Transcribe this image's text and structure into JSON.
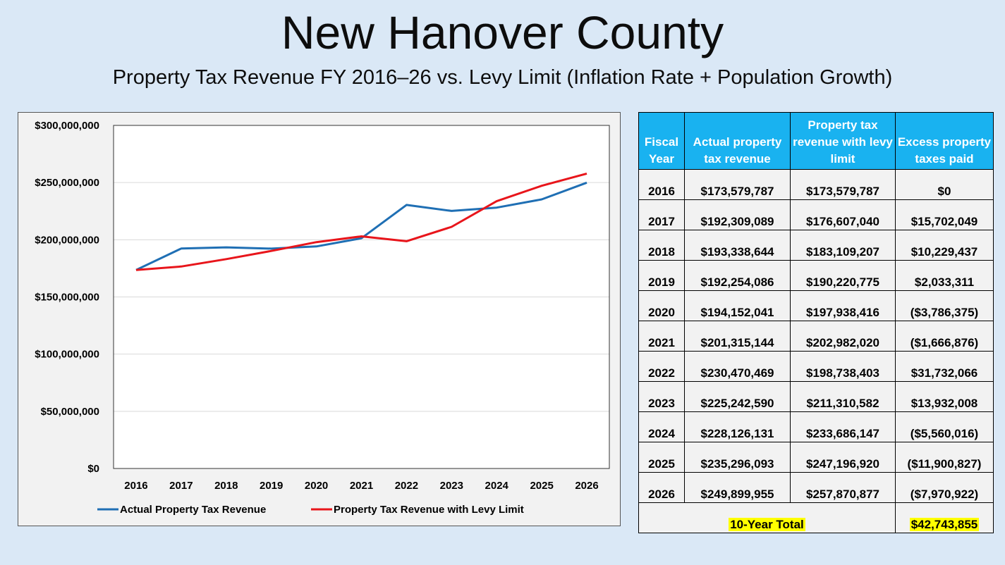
{
  "header": {
    "title": "New Hanover County",
    "subtitle": "Property Tax Revenue FY 2016–26 vs. Levy Limit (Inflation Rate + Population Growth)"
  },
  "chart_data": {
    "type": "line",
    "title": "",
    "xlabel": "",
    "ylabel": "",
    "categories": [
      "2016",
      "2017",
      "2018",
      "2019",
      "2020",
      "2021",
      "2022",
      "2023",
      "2024",
      "2025",
      "2026"
    ],
    "ylim": [
      0,
      300000000
    ],
    "yticks": [
      0,
      50000000,
      100000000,
      150000000,
      200000000,
      250000000,
      300000000
    ],
    "ytick_labels": [
      "$0",
      "$50,000,000",
      "$100,000,000",
      "$150,000,000",
      "$200,000,000",
      "$250,000,000",
      "$300,000,000"
    ],
    "grid": true,
    "legend": "bottom",
    "series": [
      {
        "name": "Actual Property Tax Revenue",
        "color": "#1f6fb4",
        "values": [
          173579787,
          192309089,
          193338644,
          192254086,
          194152041,
          201315144,
          230470469,
          225242590,
          228126131,
          235296093,
          249899955
        ]
      },
      {
        "name": "Property Tax Revenue with Levy Limit",
        "color": "#e8151b",
        "values": [
          173579787,
          176607040,
          183109207,
          190220775,
          197938416,
          202982020,
          198738403,
          211310582,
          233686147,
          247196920,
          257870877
        ]
      }
    ]
  },
  "table": {
    "headers": [
      "Fiscal Year",
      "Actual property tax revenue",
      "Property tax revenue with levy limit",
      "Excess property taxes paid"
    ],
    "rows": [
      [
        "2016",
        "$173,579,787",
        "$173,579,787",
        "$0"
      ],
      [
        "2017",
        "$192,309,089",
        "$176,607,040",
        "$15,702,049"
      ],
      [
        "2018",
        "$193,338,644",
        "$183,109,207",
        "$10,229,437"
      ],
      [
        "2019",
        "$192,254,086",
        "$190,220,775",
        "$2,033,311"
      ],
      [
        "2020",
        "$194,152,041",
        "$197,938,416",
        "($3,786,375)"
      ],
      [
        "2021",
        "$201,315,144",
        "$202,982,020",
        "($1,666,876)"
      ],
      [
        "2022",
        "$230,470,469",
        "$198,738,403",
        "$31,732,066"
      ],
      [
        "2023",
        "$225,242,590",
        "$211,310,582",
        "$13,932,008"
      ],
      [
        "2024",
        "$228,126,131",
        "$233,686,147",
        "($5,560,016)"
      ],
      [
        "2025",
        "$235,296,093",
        "$247,196,920",
        "($11,900,827)"
      ],
      [
        "2026",
        "$249,899,955",
        "$257,870,877",
        "($7,970,922)"
      ]
    ],
    "total_label": "10-Year Total",
    "total_value": "$42,743,855"
  }
}
